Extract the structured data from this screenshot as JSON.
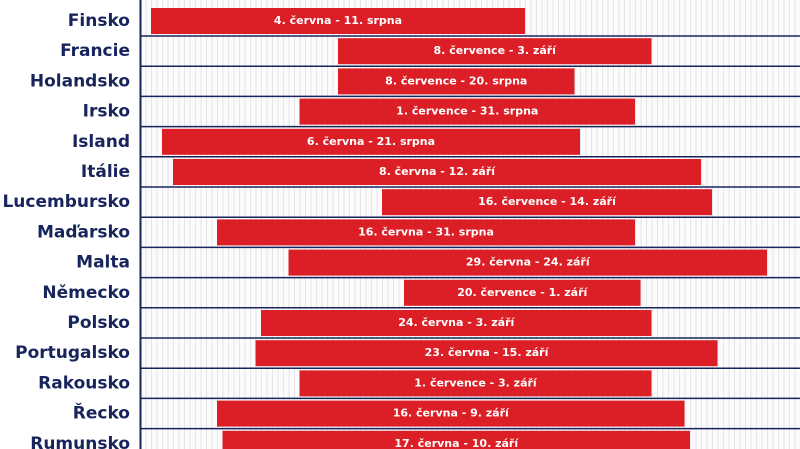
{
  "chart_data": {
    "type": "range-bar",
    "categories": [
      "Finsko",
      "Francie",
      "Holandsko",
      "Irsko",
      "Island",
      "Itálie",
      "Lucembursko",
      "Maďarsko",
      "Malta",
      "Německo",
      "Polsko",
      "Portugalsko",
      "Rakousko",
      "Řecko",
      "Rumunsko"
    ],
    "starts": [
      "06-04",
      "07-08",
      "07-08",
      "07-01",
      "06-06",
      "06-08",
      "07-16",
      "06-16",
      "06-29",
      "07-20",
      "06-24",
      "06-23",
      "07-01",
      "06-16",
      "06-17"
    ],
    "ends": [
      "08-11",
      "09-03",
      "08-20",
      "08-31",
      "08-21",
      "09-12",
      "09-14",
      "08-31",
      "09-24",
      "09-01",
      "09-03",
      "09-15",
      "09-03",
      "09-09",
      "09-10"
    ],
    "value_labels": [
      "4. června - 11. srpna",
      "8. července - 3. září",
      "8. července - 20. srpna",
      "1. července - 31. srpna",
      "6. června - 21. srpna",
      "8. června - 12. září",
      "16. července - 14. září",
      "16. června - 31. srpna",
      "29. června - 24. září",
      "20. července - 1. září",
      "24. června - 3. září",
      "23. června - 15. září",
      "1. července - 3. září",
      "16. června - 9. září",
      "17. června - 10. září"
    ],
    "color": "#dc1e26",
    "xlim": [
      "06-02",
      "09-30"
    ]
  }
}
